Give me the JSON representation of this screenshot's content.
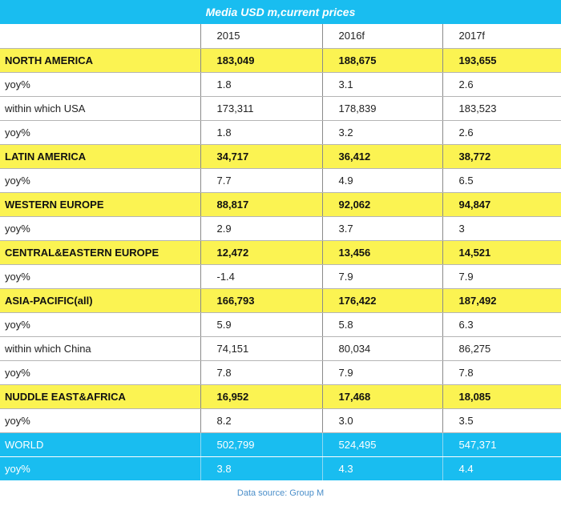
{
  "title": "Media USD m,current prices",
  "columns": [
    "",
    "2015",
    "2016f",
    "2017f"
  ],
  "rows": [
    {
      "type": "region",
      "cells": [
        "NORTH AMERICA",
        "183,049",
        "188,675",
        "193,655"
      ]
    },
    {
      "type": "normal",
      "cells": [
        "yoy%",
        "1.8",
        "3.1",
        "2.6"
      ]
    },
    {
      "type": "normal",
      "cells": [
        "within which USA",
        "173,311",
        "178,839",
        "183,523"
      ]
    },
    {
      "type": "normal",
      "cells": [
        "yoy%",
        "1.8",
        "3.2",
        "2.6"
      ]
    },
    {
      "type": "region",
      "cells": [
        "LATIN AMERICA",
        "34,717",
        "36,412",
        "38,772"
      ]
    },
    {
      "type": "normal",
      "cells": [
        "yoy%",
        "7.7",
        "4.9",
        "6.5"
      ]
    },
    {
      "type": "region",
      "cells": [
        "WESTERN EUROPE",
        "88,817",
        "92,062",
        "94,847"
      ]
    },
    {
      "type": "normal",
      "cells": [
        "yoy%",
        "2.9",
        "3.7",
        "3"
      ]
    },
    {
      "type": "region",
      "cells": [
        "CENTRAL&EASTERN EUROPE",
        "12,472",
        "13,456",
        "14,521"
      ]
    },
    {
      "type": "normal",
      "cells": [
        "yoy%",
        "-1.4",
        "7.9",
        "7.9"
      ]
    },
    {
      "type": "region",
      "cells": [
        "ASIA-PACIFIC(all)",
        "166,793",
        "176,422",
        "187,492"
      ]
    },
    {
      "type": "normal",
      "cells": [
        "yoy%",
        "5.9",
        "5.8",
        "6.3"
      ]
    },
    {
      "type": "normal",
      "cells": [
        "within which China",
        "74,151",
        "80,034",
        "86,275"
      ]
    },
    {
      "type": "normal",
      "cells": [
        "yoy%",
        "7.8",
        "7.9",
        "7.8"
      ]
    },
    {
      "type": "region",
      "cells": [
        "NUDDLE EAST&AFRICA",
        "16,952",
        "17,468",
        "18,085"
      ]
    },
    {
      "type": "normal",
      "cells": [
        "yoy%",
        "8.2",
        "3.0",
        "3.5"
      ]
    },
    {
      "type": "world",
      "cells": [
        "WORLD",
        "502,799",
        "524,495",
        "547,371"
      ]
    },
    {
      "type": "world",
      "cells": [
        "yoy%",
        "3.8",
        "4.3",
        "4.4"
      ]
    }
  ],
  "source": "Data source: Group M",
  "colors": {
    "accent_blue": "#19bdf0",
    "highlight_yellow": "#fbf352"
  }
}
